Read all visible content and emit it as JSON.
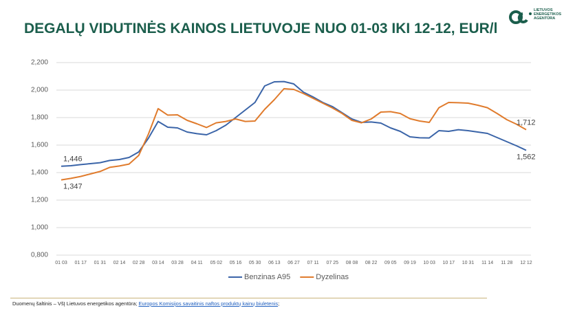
{
  "chart_data": {
    "type": "line",
    "title": "DEGALŲ VIDUTINĖS KAINOS LIETUVOJE NUO 01-03 IKI 12-12, EUR/l",
    "categories": [
      "01 03",
      null,
      "01 17",
      null,
      "01 31",
      null,
      "02 14",
      null,
      "02 28",
      null,
      "03 14",
      null,
      "03 28",
      null,
      "04 11",
      null,
      "05 02",
      null,
      "05 16",
      null,
      "05 30",
      null,
      "06 13",
      null,
      "06 27",
      null,
      "07 11",
      null,
      "07 25",
      null,
      "08 08",
      null,
      "08 22",
      null,
      "09 05",
      null,
      "09 19",
      null,
      "10 03",
      null,
      "10 17",
      null,
      "10 31",
      null,
      "11 14",
      null,
      "11 28",
      null,
      "12 12"
    ],
    "series": [
      {
        "name": "Benzinas A95",
        "color": "#3a64a8",
        "values": [
          1.446,
          1.45,
          1.458,
          1.465,
          1.472,
          1.488,
          1.495,
          1.51,
          1.55,
          1.65,
          1.772,
          1.73,
          1.725,
          1.695,
          1.683,
          1.675,
          1.705,
          1.745,
          1.8,
          1.855,
          1.91,
          2.03,
          2.06,
          2.062,
          2.045,
          1.985,
          1.95,
          1.91,
          1.88,
          1.835,
          1.79,
          1.765,
          1.768,
          1.76,
          1.725,
          1.7,
          1.66,
          1.653,
          1.652,
          1.705,
          1.7,
          1.712,
          1.705,
          1.695,
          1.685,
          1.655,
          1.625,
          1.595,
          1.562
        ],
        "value_labels": [
          "1,446",
          null,
          null,
          null,
          null,
          null,
          null,
          null,
          null,
          null,
          null,
          null,
          null,
          null,
          null,
          null,
          null,
          null,
          null,
          null,
          null,
          null,
          null,
          null,
          null,
          null,
          null,
          null,
          null,
          null,
          null,
          null,
          null,
          null,
          null,
          null,
          null,
          null,
          null,
          null,
          null,
          null,
          null,
          null,
          null,
          null,
          null,
          null,
          "1,562"
        ]
      },
      {
        "name": "Dyzelinas",
        "color": "#e07b2c",
        "values": [
          1.347,
          1.358,
          1.372,
          1.39,
          1.408,
          1.438,
          1.448,
          1.462,
          1.525,
          1.68,
          1.865,
          1.818,
          1.82,
          1.78,
          1.755,
          1.728,
          1.762,
          1.772,
          1.79,
          1.772,
          1.775,
          1.86,
          1.93,
          2.01,
          2.005,
          1.975,
          1.94,
          1.905,
          1.87,
          1.83,
          1.78,
          1.762,
          1.79,
          1.84,
          1.843,
          1.83,
          1.792,
          1.775,
          1.765,
          1.872,
          1.91,
          1.908,
          1.905,
          1.89,
          1.872,
          1.83,
          1.785,
          1.752,
          1.712
        ],
        "value_labels": [
          "1,347",
          null,
          null,
          null,
          null,
          null,
          null,
          null,
          null,
          null,
          null,
          null,
          null,
          null,
          null,
          null,
          null,
          null,
          null,
          null,
          null,
          null,
          null,
          null,
          null,
          null,
          null,
          null,
          null,
          null,
          null,
          null,
          null,
          null,
          null,
          null,
          null,
          null,
          null,
          null,
          null,
          null,
          null,
          null,
          null,
          null,
          null,
          null,
          "1,712"
        ]
      }
    ],
    "ylim": [
      0.8,
      2.2
    ],
    "yticks": [
      {
        "value": 0.8,
        "label": "0,800"
      },
      {
        "value": 1,
        "label": "1,000"
      },
      {
        "value": 1.2,
        "label": "1,200"
      },
      {
        "value": 1.4,
        "label": "1,400"
      },
      {
        "value": 1.6,
        "label": "1,600"
      },
      {
        "value": 1.8,
        "label": "1,800"
      },
      {
        "value": 2,
        "label": "2,000"
      },
      {
        "value": 2.2,
        "label": "2,200"
      }
    ],
    "grid": true,
    "legend": "bottom"
  },
  "logo": [
    "LIETUVOS",
    "ENERGETIKOS",
    "AGENTŪRA"
  ],
  "source": {
    "text": "Duomenų šaltinis – VšĮ Lietuvos energetikos agentūra;",
    "link": "Europos Komisijos savaitinis naftos produktų kainų biuletenis",
    "end": ";"
  }
}
